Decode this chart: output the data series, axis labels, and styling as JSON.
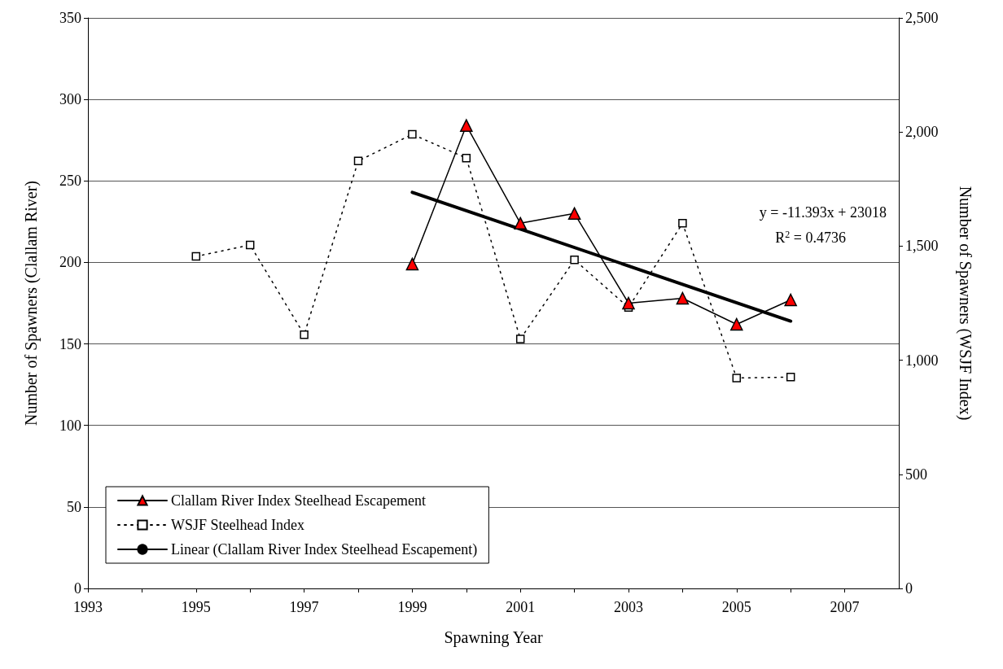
{
  "chart_data": {
    "type": "line",
    "xlabel": "Spawning Year",
    "ylabel": "Number of Spawners (Clallam River)",
    "y2label": "Number of Spawners (WSJF Index)",
    "xlim": [
      1993,
      2008
    ],
    "xticks": [
      1993,
      {
        "value": 1994,
        "label": null
      },
      1995,
      {
        "value": 1996,
        "label": null
      },
      1997,
      {
        "value": 1998,
        "label": null
      },
      1999,
      {
        "value": 2000,
        "label": null
      },
      2001,
      {
        "value": 2002,
        "label": null
      },
      2003,
      {
        "value": 2004,
        "label": null
      },
      2005,
      {
        "value": 2006,
        "label": null
      },
      2007
    ],
    "ylim": [
      0,
      350
    ],
    "yticks": [
      0,
      50,
      100,
      150,
      200,
      250,
      300,
      350
    ],
    "y2lim": [
      0,
      2500
    ],
    "y2ticks": [
      0,
      500,
      {
        "value": 1000,
        "label": "1,000"
      },
      {
        "value": 1500,
        "label": "1,500"
      },
      {
        "value": 2000,
        "label": "2,000"
      },
      {
        "value": 2500,
        "label": "2,500"
      }
    ],
    "grid": "y",
    "legend": "bottom left",
    "annotations": [
      "y = -11.393x + 23018",
      "R$^{2}$ = 0.4736"
    ],
    "series": [
      {
        "name": "Clallam River Index Steelhead Escapement",
        "color": "#ff0000",
        "marker": "triangle",
        "line_style": "solid",
        "x": [
          1999,
          2000,
          2001,
          2002,
          2003,
          2004,
          2005,
          2006
        ],
        "values": [
          199,
          284,
          224,
          230,
          175,
          178,
          162,
          177
        ]
      },
      {
        "name": "WSJF Steelhead Index",
        "color": "#ffffff",
        "marker": "square",
        "line_style": "dotted",
        "axis": "y2",
        "x": [
          1995,
          1996,
          1997,
          1998,
          1999,
          2000,
          2001,
          2002,
          2003,
          2004,
          2005,
          2006
        ],
        "values": [
          1455,
          1505,
          1112,
          1873,
          1990,
          1886,
          1093,
          1440,
          1231,
          1600,
          922,
          926
        ]
      },
      {
        "name": "Linear (Clallam River Index Steelhead Escapement)",
        "color": "#000000",
        "marker": "none",
        "line_style": "solid",
        "x": [
          1999,
          2006
        ],
        "values": [
          243,
          164
        ]
      }
    ]
  }
}
